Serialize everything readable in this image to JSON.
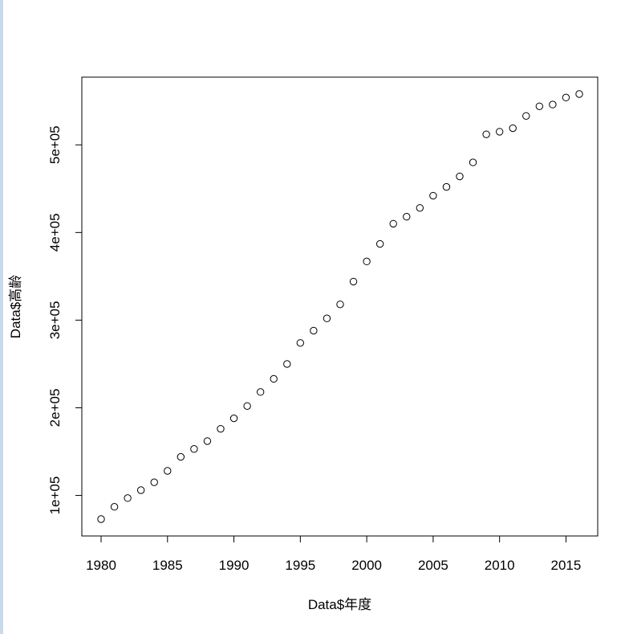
{
  "colors": {
    "window_edge": "#c9d9ee",
    "background": "#ffffff",
    "axis": "#000000",
    "point_stroke": "#000000"
  },
  "chart_data": {
    "type": "scatter",
    "title": "",
    "xlabel": "Data$年度",
    "ylabel": "Data$高齢",
    "xlim": [
      1980,
      2016
    ],
    "ylim": [
      73000,
      558000
    ],
    "x_ticks": [
      1980,
      1985,
      1990,
      1995,
      2000,
      2005,
      2010,
      2015
    ],
    "y_ticks": [
      100000,
      200000,
      300000,
      400000,
      500000
    ],
    "y_tick_labels": [
      "1e+05",
      "2e+05",
      "3e+05",
      "4e+05",
      "5e+05"
    ],
    "grid": false,
    "legend": "none",
    "marker": "open-circle",
    "x": [
      1980,
      1981,
      1982,
      1983,
      1984,
      1985,
      1986,
      1987,
      1988,
      1989,
      1990,
      1991,
      1992,
      1993,
      1994,
      1995,
      1996,
      1997,
      1998,
      1999,
      2000,
      2001,
      2002,
      2003,
      2004,
      2005,
      2006,
      2007,
      2008,
      2009,
      2010,
      2011,
      2012,
      2013,
      2014,
      2015,
      2016
    ],
    "y": [
      73000,
      87000,
      97000,
      106000,
      115000,
      128000,
      144000,
      153000,
      162000,
      176000,
      188000,
      202000,
      218000,
      233000,
      250000,
      274000,
      288000,
      302000,
      318000,
      344000,
      367000,
      387000,
      410000,
      418000,
      428000,
      442000,
      452000,
      464000,
      480000,
      512000,
      515000,
      519000,
      533000,
      544000,
      546000,
      554000,
      558000
    ]
  }
}
